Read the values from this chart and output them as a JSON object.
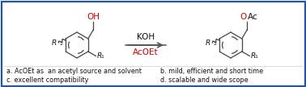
{
  "border_color": "#2255aa",
  "background_color": "#ffffff",
  "red_color": "#cc0000",
  "black_color": "#111111",
  "gray_color": "#555555",
  "arrow_color": "#555555",
  "text_bottom_a": "a. AcOEt as  an acetyl source and solvent",
  "text_bottom_b": "b. mild, efficient and short time",
  "text_bottom_c": "c. excellent compatibility",
  "text_bottom_d": "d. scalable and wide scope",
  "koh_label": "KOH",
  "acoet_label": "AcOEt",
  "oh_label": "OH",
  "figsize": [
    3.78,
    1.08
  ],
  "dpi": 100
}
